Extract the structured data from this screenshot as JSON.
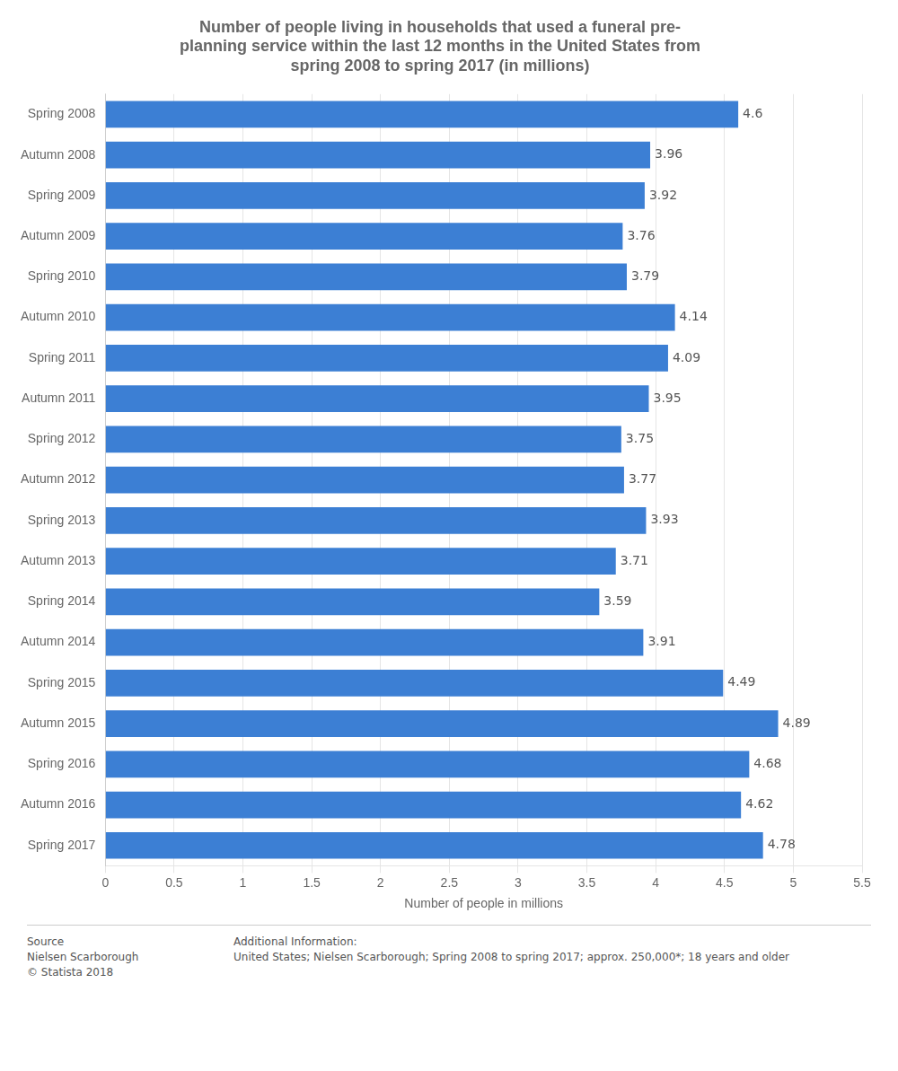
{
  "chart_data": {
    "type": "bar",
    "orientation": "horizontal",
    "title": "Number of people living in households that used a funeral pre-\nplanning service within the last 12 months in the United States from\nspring 2008 to spring 2017 (in millions)",
    "categories": [
      "Spring 2008",
      "Autumn 2008",
      "Spring 2009",
      "Autumn 2009",
      "Spring 2010",
      "Autumn 2010",
      "Spring 2011",
      "Autumn 2011",
      "Spring 2012",
      "Autumn 2012",
      "Spring 2013",
      "Autumn 2013",
      "Spring 2014",
      "Autumn 2014",
      "Spring 2015",
      "Autumn 2015",
      "Spring 2016",
      "Autumn 2016",
      "Spring 2017"
    ],
    "values": [
      4.6,
      3.96,
      3.92,
      3.76,
      3.79,
      4.14,
      4.09,
      3.95,
      3.75,
      3.77,
      3.93,
      3.71,
      3.59,
      3.91,
      4.49,
      4.89,
      4.68,
      4.62,
      4.78
    ],
    "color": "#3c7fd4",
    "xlabel": "Number of people in millions",
    "xlim": [
      0,
      5.5
    ],
    "xticks": [
      0,
      0.5,
      1,
      1.5,
      2,
      2.5,
      3,
      3.5,
      4,
      4.5,
      5,
      5.5
    ],
    "grid": true,
    "data_labels": true,
    "annotations": [
      "Source\nNielsen Scarborough\n© Statista 2018",
      "Additional Information:\nUnited States; Nielsen Scarborough; Spring 2008 to spring 2017; approx. 250,000*; 18 years and older"
    ]
  }
}
